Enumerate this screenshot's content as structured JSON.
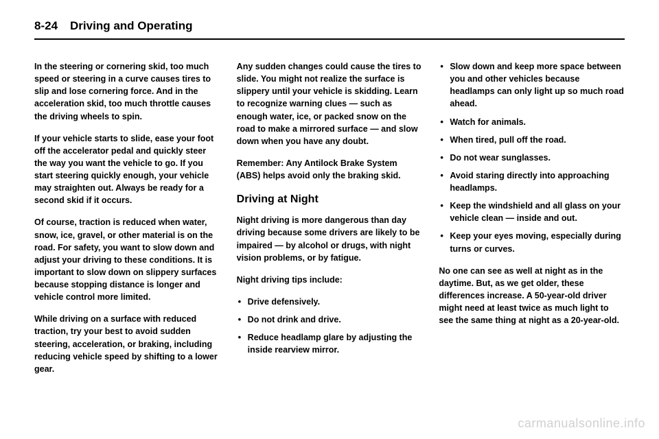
{
  "header": {
    "page_number": "8-24",
    "title": "Driving and Operating"
  },
  "columns": {
    "col1": {
      "p1": "In the steering or cornering skid, too much speed or steering in a curve causes tires to slip and lose cornering force. And in the acceleration skid, too much throttle causes the driving wheels to spin.",
      "p2": "If your vehicle starts to slide, ease your foot off the accelerator pedal and quickly steer the way you want the vehicle to go. If you start steering quickly enough, your vehicle may straighten out. Always be ready for a second skid if it occurs.",
      "p3": "Of course, traction is reduced when water, snow, ice, gravel, or other material is on the road. For safety, you want to slow down and adjust your driving to these conditions. It is important to slow down on slippery surfaces because stopping distance is longer and vehicle control more limited.",
      "p4": "While driving on a surface with reduced traction, try your best to avoid sudden steering, acceleration, or braking, including reducing vehicle speed by shifting to a lower gear."
    },
    "col2": {
      "p1": "Any sudden changes could cause the tires to slide. You might not realize the surface is slippery until your vehicle is skidding. Learn to recognize warning clues — such as enough water, ice, or packed snow on the road to make a mirrored surface — and slow down when you have any doubt.",
      "p2": "Remember: Any Antilock Brake System (ABS) helps avoid only the braking skid.",
      "heading": "Driving at Night",
      "p3": "Night driving is more dangerous than day driving because some drivers are likely to be impaired — by alcohol or drugs, with night vision problems, or by fatigue.",
      "p4": "Night driving tips include:",
      "list1": {
        "i1": "Drive defensively.",
        "i2": "Do not drink and drive.",
        "i3": "Reduce headlamp glare by adjusting the inside rearview mirror."
      }
    },
    "col3": {
      "list1": {
        "i1": "Slow down and keep more space between you and other vehicles because headlamps can only light up so much road ahead.",
        "i2": "Watch for animals.",
        "i3": "When tired, pull off the road.",
        "i4": "Do not wear sunglasses.",
        "i5": "Avoid staring directly into approaching headlamps.",
        "i6": "Keep the windshield and all glass on your vehicle clean — inside and out.",
        "i7": "Keep your eyes moving, especially during turns or curves."
      },
      "p1": "No one can see as well at night as in the daytime. But, as we get older, these differences increase. A 50-year-old driver might need at least twice as much light to see the same thing at night as a 20-year-old."
    }
  },
  "watermark": "carmanualsonline.info"
}
